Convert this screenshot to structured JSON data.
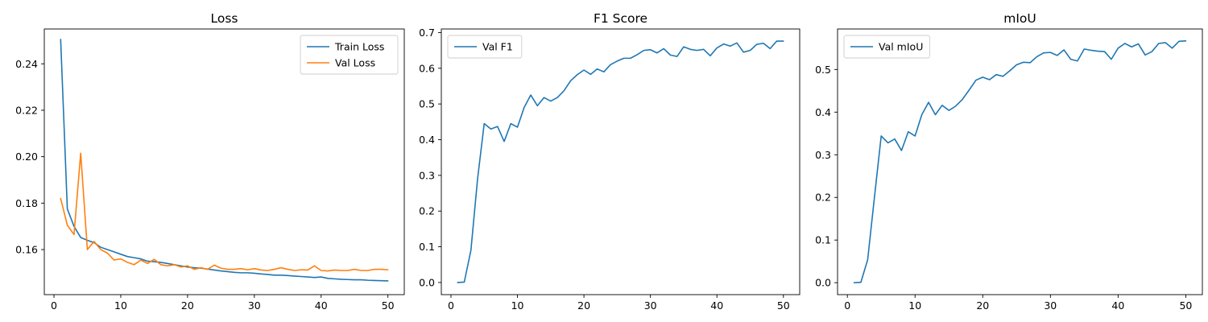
{
  "chart_data": [
    {
      "type": "line",
      "title": "Loss",
      "xlabel": "",
      "ylabel": "",
      "xlim": [
        -1.45,
        52.45
      ],
      "ylim": [
        0.1406,
        0.255
      ],
      "xticks": [
        0,
        10,
        20,
        30,
        40,
        50
      ],
      "yticks": [
        0.16,
        0.18,
        0.2,
        0.22,
        0.24
      ],
      "ytick_decimals": 2,
      "grid": false,
      "legend": "top-right",
      "x": [
        1,
        2,
        3,
        4,
        5,
        6,
        7,
        8,
        9,
        10,
        11,
        12,
        13,
        14,
        15,
        16,
        17,
        18,
        19,
        20,
        21,
        22,
        23,
        24,
        25,
        26,
        27,
        28,
        29,
        30,
        31,
        32,
        33,
        34,
        35,
        36,
        37,
        38,
        39,
        40,
        41,
        42,
        43,
        44,
        45,
        46,
        47,
        48,
        49,
        50
      ],
      "series": [
        {
          "name": "Train Loss",
          "color": "#1f77b4",
          "values": [
            0.2505,
            0.1775,
            0.17,
            0.1652,
            0.164,
            0.163,
            0.161,
            0.16,
            0.159,
            0.158,
            0.157,
            0.1565,
            0.156,
            0.155,
            0.1548,
            0.1545,
            0.154,
            0.1535,
            0.153,
            0.1525,
            0.1522,
            0.152,
            0.1516,
            0.1512,
            0.1508,
            0.1505,
            0.1502,
            0.15,
            0.15,
            0.1498,
            0.1495,
            0.1493,
            0.149,
            0.149,
            0.1488,
            0.1486,
            0.1484,
            0.1482,
            0.148,
            0.1482,
            0.1476,
            0.1474,
            0.1472,
            0.1471,
            0.147,
            0.147,
            0.1468,
            0.1467,
            0.1466,
            0.1465
          ]
        },
        {
          "name": "Val Loss",
          "color": "#ff7f0e",
          "values": [
            0.182,
            0.1705,
            0.1665,
            0.2015,
            0.16,
            0.1635,
            0.16,
            0.1585,
            0.1555,
            0.156,
            0.1545,
            0.1535,
            0.1555,
            0.154,
            0.1558,
            0.1535,
            0.153,
            0.1535,
            0.1525,
            0.153,
            0.1515,
            0.1522,
            0.1515,
            0.1533,
            0.152,
            0.1515,
            0.1515,
            0.1518,
            0.1513,
            0.1518,
            0.1512,
            0.151,
            0.1515,
            0.1522,
            0.1515,
            0.151,
            0.1513,
            0.1512,
            0.153,
            0.151,
            0.1508,
            0.1512,
            0.151,
            0.151,
            0.1515,
            0.151,
            0.151,
            0.1515,
            0.1515,
            0.1513
          ]
        }
      ]
    },
    {
      "type": "line",
      "title": "F1 Score",
      "xlabel": "",
      "ylabel": "",
      "xlim": [
        -1.45,
        52.45
      ],
      "ylim": [
        -0.034,
        0.71
      ],
      "xticks": [
        0,
        10,
        20,
        30,
        40,
        50
      ],
      "yticks": [
        0.0,
        0.1,
        0.2,
        0.3,
        0.4,
        0.5,
        0.6,
        0.7
      ],
      "ytick_decimals": 1,
      "grid": false,
      "legend": "top-left",
      "x": [
        1,
        2,
        3,
        4,
        5,
        6,
        7,
        8,
        9,
        10,
        11,
        12,
        13,
        14,
        15,
        16,
        17,
        18,
        19,
        20,
        21,
        22,
        23,
        24,
        25,
        26,
        27,
        28,
        29,
        30,
        31,
        32,
        33,
        34,
        35,
        36,
        37,
        38,
        39,
        40,
        41,
        42,
        43,
        44,
        45,
        46,
        47,
        48,
        49,
        50
      ],
      "series": [
        {
          "name": "Val F1",
          "color": "#1f77b4",
          "values": [
            0.0,
            0.001,
            0.09,
            0.29,
            0.445,
            0.43,
            0.437,
            0.395,
            0.445,
            0.435,
            0.49,
            0.525,
            0.495,
            0.518,
            0.508,
            0.518,
            0.537,
            0.565,
            0.582,
            0.595,
            0.583,
            0.598,
            0.59,
            0.61,
            0.62,
            0.628,
            0.628,
            0.638,
            0.65,
            0.652,
            0.643,
            0.655,
            0.637,
            0.633,
            0.66,
            0.653,
            0.65,
            0.653,
            0.635,
            0.657,
            0.668,
            0.662,
            0.671,
            0.645,
            0.65,
            0.667,
            0.67,
            0.655,
            0.676,
            0.676
          ]
        }
      ]
    },
    {
      "type": "line",
      "title": "mIoU",
      "xlabel": "",
      "ylabel": "",
      "xlim": [
        -1.45,
        52.45
      ],
      "ylim": [
        -0.028,
        0.595
      ],
      "xticks": [
        0,
        10,
        20,
        30,
        40,
        50
      ],
      "yticks": [
        0.0,
        0.1,
        0.2,
        0.3,
        0.4,
        0.5
      ],
      "ytick_decimals": 1,
      "grid": false,
      "legend": "top-left",
      "x": [
        1,
        2,
        3,
        4,
        5,
        6,
        7,
        8,
        9,
        10,
        11,
        12,
        13,
        14,
        15,
        16,
        17,
        18,
        19,
        20,
        21,
        22,
        23,
        24,
        25,
        26,
        27,
        28,
        29,
        30,
        31,
        32,
        33,
        34,
        35,
        36,
        37,
        38,
        39,
        40,
        41,
        42,
        43,
        44,
        45,
        46,
        47,
        48,
        49,
        50
      ],
      "series": [
        {
          "name": "Val mIoU",
          "color": "#1f77b4",
          "values": [
            0.0,
            0.001,
            0.054,
            0.2,
            0.344,
            0.328,
            0.337,
            0.31,
            0.354,
            0.344,
            0.394,
            0.423,
            0.394,
            0.416,
            0.404,
            0.414,
            0.43,
            0.452,
            0.475,
            0.482,
            0.476,
            0.488,
            0.484,
            0.497,
            0.511,
            0.517,
            0.516,
            0.53,
            0.539,
            0.54,
            0.533,
            0.546,
            0.524,
            0.52,
            0.548,
            0.545,
            0.543,
            0.542,
            0.524,
            0.55,
            0.561,
            0.553,
            0.56,
            0.534,
            0.542,
            0.561,
            0.563,
            0.55,
            0.566,
            0.567
          ]
        }
      ]
    }
  ]
}
